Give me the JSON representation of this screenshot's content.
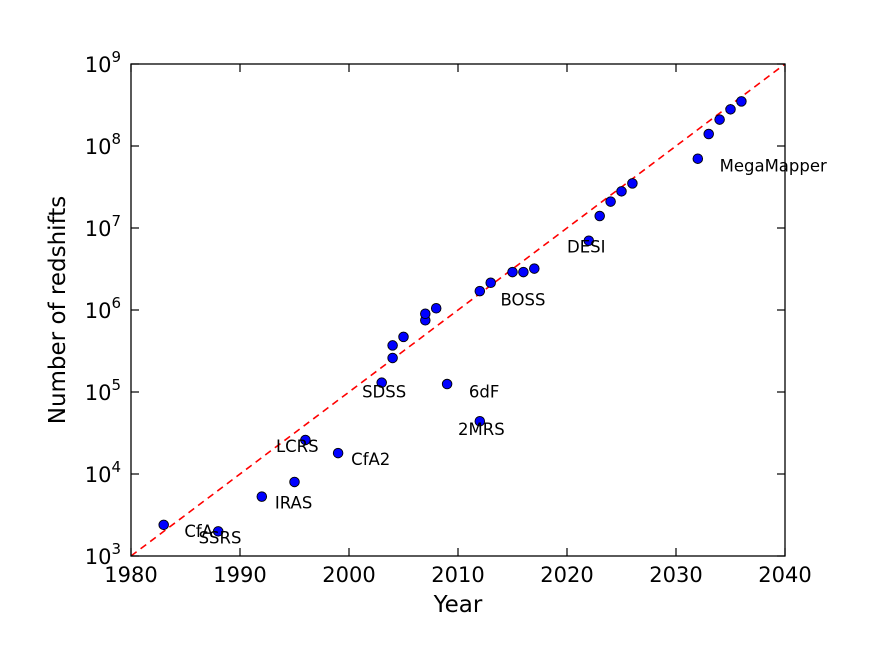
{
  "chart_data": {
    "type": "scatter",
    "title": "",
    "xlabel": "Year",
    "ylabel": "Number of redshifts",
    "xlim": [
      1980,
      2040
    ],
    "ylim": [
      1000,
      1000000000
    ],
    "yscale": "log",
    "grid": false,
    "x_ticks": [
      "1980",
      "1990",
      "2000",
      "2010",
      "2020",
      "2030",
      "2040"
    ],
    "y_ticks": [
      {
        "base": "10",
        "exp": "3"
      },
      {
        "base": "10",
        "exp": "4"
      },
      {
        "base": "10",
        "exp": "5"
      },
      {
        "base": "10",
        "exp": "6"
      },
      {
        "base": "10",
        "exp": "7"
      },
      {
        "base": "10",
        "exp": "8"
      },
      {
        "base": "10",
        "exp": "9"
      }
    ],
    "marker_color": "#0000ff",
    "trend_color": "#ff0000",
    "trend_line": {
      "style": "dashed",
      "from": [
        1980,
        1000
      ],
      "to": [
        2040,
        1000000000
      ]
    },
    "points": [
      {
        "x": 1983,
        "y": 2400
      },
      {
        "x": 1988,
        "y": 2000
      },
      {
        "x": 1992,
        "y": 5300
      },
      {
        "x": 1995,
        "y": 8000
      },
      {
        "x": 1996,
        "y": 26000
      },
      {
        "x": 1999,
        "y": 18000
      },
      {
        "x": 2003,
        "y": 130000
      },
      {
        "x": 2004,
        "y": 260000
      },
      {
        "x": 2004,
        "y": 370000
      },
      {
        "x": 2005,
        "y": 470000
      },
      {
        "x": 2007,
        "y": 750000
      },
      {
        "x": 2007,
        "y": 900000
      },
      {
        "x": 2008,
        "y": 1050000
      },
      {
        "x": 2009,
        "y": 125000
      },
      {
        "x": 2012,
        "y": 44000
      },
      {
        "x": 2012,
        "y": 1700000
      },
      {
        "x": 2013,
        "y": 2150000
      },
      {
        "x": 2015,
        "y": 2900000
      },
      {
        "x": 2016,
        "y": 2900000
      },
      {
        "x": 2017,
        "y": 3200000
      },
      {
        "x": 2022,
        "y": 7000000
      },
      {
        "x": 2023,
        "y": 14000000
      },
      {
        "x": 2024,
        "y": 21000000
      },
      {
        "x": 2025,
        "y": 28000000
      },
      {
        "x": 2026,
        "y": 35000000
      },
      {
        "x": 2032,
        "y": 70000000
      },
      {
        "x": 2033,
        "y": 140000000
      },
      {
        "x": 2034,
        "y": 210000000
      },
      {
        "x": 2035,
        "y": 280000000
      },
      {
        "x": 2036,
        "y": 350000000
      }
    ],
    "annotations": [
      {
        "text": "CfA",
        "x": 1984.9,
        "y": 2400
      },
      {
        "text": "SSRS",
        "x": 1986.2,
        "y": 2000
      },
      {
        "text": "IRAS",
        "x": 1993.2,
        "y": 5300
      },
      {
        "text": "LCRS",
        "x": 1993.3,
        "y": 26000
      },
      {
        "text": "CfA2",
        "x": 2000.2,
        "y": 18000
      },
      {
        "text": "SDSS",
        "x": 2001.2,
        "y": 120000
      },
      {
        "text": "6dF",
        "x": 2011.0,
        "y": 120000
      },
      {
        "text": "2MRS",
        "x": 2010.0,
        "y": 42000
      },
      {
        "text": "BOSS",
        "x": 2013.9,
        "y": 1600000
      },
      {
        "text": "DESI",
        "x": 2020.0,
        "y": 7000000
      },
      {
        "text": "MegaMapper",
        "x": 2034.0,
        "y": 68000000
      }
    ]
  }
}
